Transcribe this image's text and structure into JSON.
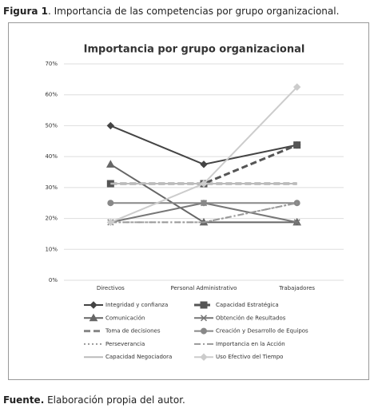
{
  "caption": {
    "label": "Figura 1",
    "text": ". Importancia de las competencias por grupo organizacional."
  },
  "source": {
    "label": "Fuente.",
    "text": " Elaboración propia del autor."
  },
  "chart_data": {
    "type": "line",
    "title": "Importancia por grupo organizacional",
    "categories": [
      "Directivos",
      "Personal Administrativo",
      "Trabajadores"
    ],
    "ylim": [
      0,
      70
    ],
    "yticks": [
      {
        "value": 0,
        "label": "0%"
      },
      {
        "value": 10,
        "label": "10%"
      },
      {
        "value": 20,
        "label": "20%"
      },
      {
        "value": 30,
        "label": "30%"
      },
      {
        "value": 40,
        "label": "40%"
      },
      {
        "value": 50,
        "label": "50%"
      },
      {
        "value": 60,
        "label": "60%"
      },
      {
        "value": 70,
        "label": "70%"
      }
    ],
    "grid": true,
    "legend": "bottom",
    "series": [
      {
        "name": "Integridad y confianza",
        "color": "#444444",
        "marker": "diamond",
        "line_style": "solid",
        "values": [
          50,
          37.5,
          43.75
        ]
      },
      {
        "name": "Capacidad Estratégica",
        "color": "#555555",
        "marker": "square",
        "line_style": "dashed",
        "values": [
          31.25,
          31.25,
          43.75
        ]
      },
      {
        "name": "Comunicación",
        "color": "#666666",
        "marker": "triangle",
        "line_style": "solid",
        "values": [
          37.5,
          18.75,
          18.75
        ]
      },
      {
        "name": "Obtención de Resultados",
        "color": "#777777",
        "marker": "x",
        "line_style": "solid",
        "values": [
          18.75,
          25,
          18.75
        ]
      },
      {
        "name": "Toma de decisiones",
        "color": "#888888",
        "marker": "none",
        "line_style": "dashed",
        "values": [
          31.25,
          31.25,
          31.25
        ]
      },
      {
        "name": "Creación y Desarrollo de Equipos",
        "color": "#888888",
        "marker": "circle",
        "line_style": "solid",
        "values": [
          25,
          25,
          25
        ]
      },
      {
        "name": "Perseverancia",
        "color": "#999999",
        "marker": "none",
        "line_style": "dotted",
        "values": [
          18.75,
          18.75,
          25
        ]
      },
      {
        "name": "Importancia en la Acción",
        "color": "#999999",
        "marker": "none",
        "line_style": "dashdot",
        "values": [
          18.75,
          18.75,
          25
        ]
      },
      {
        "name": "Capacidad Negociadora",
        "color": "#bbbbbb",
        "marker": "none",
        "line_style": "solid",
        "values": [
          31.25,
          31.25,
          31.25
        ]
      },
      {
        "name": "Uso Efectivo del Tiempo",
        "color": "#cccccc",
        "marker": "diamond",
        "line_style": "solid",
        "values": [
          18.75,
          31.25,
          62.5
        ]
      }
    ]
  }
}
